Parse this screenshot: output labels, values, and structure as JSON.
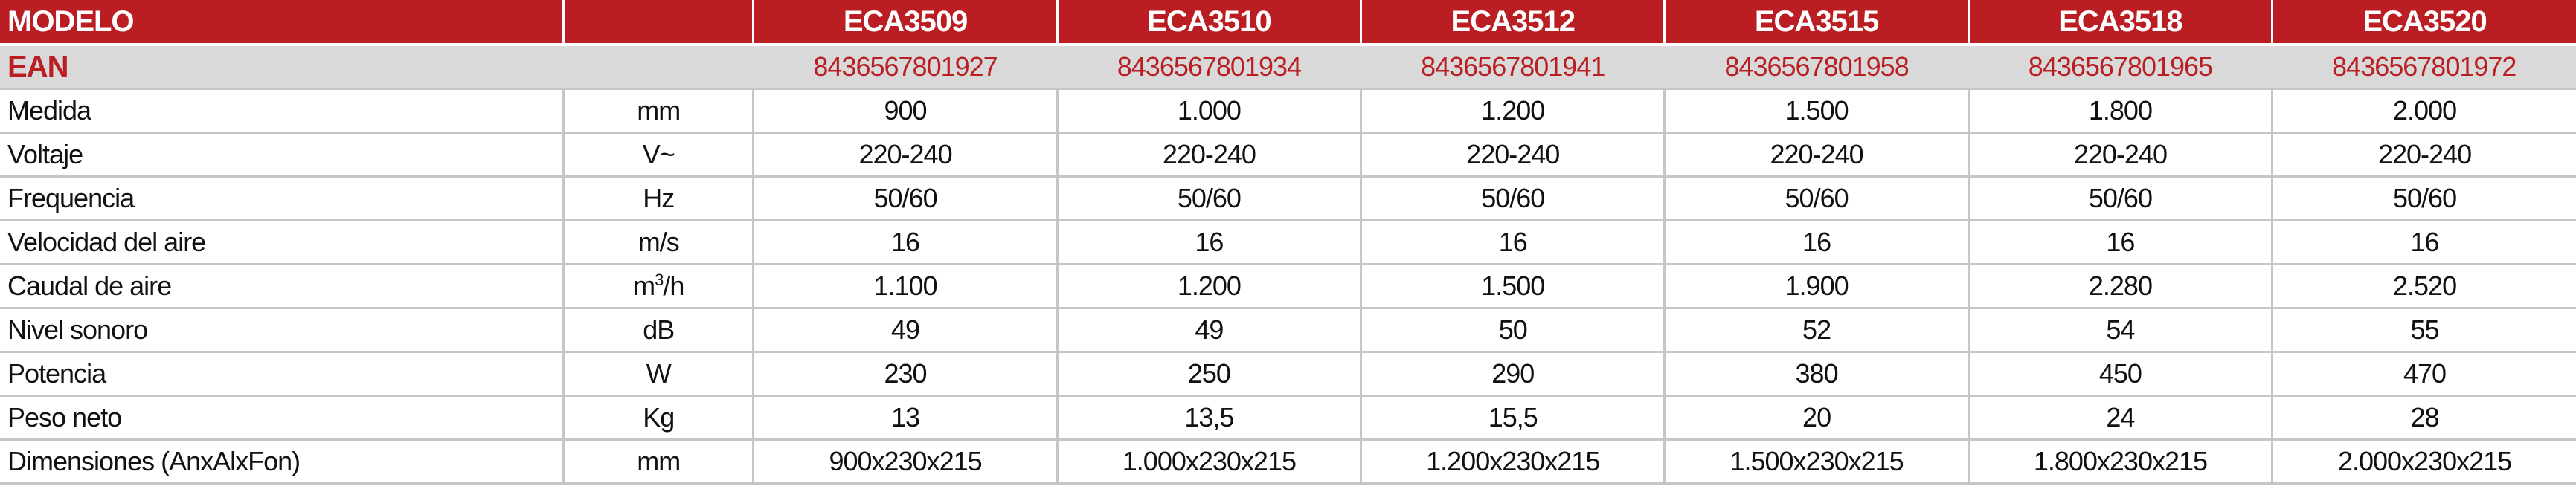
{
  "colors": {
    "header_bg": "#bb1e22",
    "ean_bg": "#d9d9d9",
    "ean_text": "#bb1e22",
    "border": "#c6c6c6"
  },
  "header": {
    "label": "MODELO",
    "unit": "",
    "models": [
      "ECA3509",
      "ECA3510",
      "ECA3512",
      "ECA3515",
      "ECA3518",
      "ECA3520"
    ]
  },
  "ean": {
    "label": "EAN",
    "unit": "",
    "values": [
      "8436567801927",
      "8436567801934",
      "8436567801941",
      "8436567801958",
      "8436567801965",
      "8436567801972"
    ]
  },
  "rows": [
    {
      "label": "Medida",
      "unit": "mm",
      "values": [
        "900",
        "1.000",
        "1.200",
        "1.500",
        "1.800",
        "2.000"
      ]
    },
    {
      "label": "Voltaje",
      "unit": "V~",
      "values": [
        "220-240",
        "220-240",
        "220-240",
        "220-240",
        "220-240",
        "220-240"
      ]
    },
    {
      "label": "Frequencia",
      "unit": "Hz",
      "values": [
        "50/60",
        "50/60",
        "50/60",
        "50/60",
        "50/60",
        "50/60"
      ]
    },
    {
      "label": "Velocidad del aire",
      "unit": "m/s",
      "values": [
        "16",
        "16",
        "16",
        "16",
        "16",
        "16"
      ]
    },
    {
      "label": "Caudal de aire",
      "unit": "m3/h",
      "values": [
        "1.100",
        "1.200",
        "1.500",
        "1.900",
        "2.280",
        "2.520"
      ]
    },
    {
      "label": "Nivel sonoro",
      "unit": "dB",
      "values": [
        "49",
        "49",
        "50",
        "52",
        "54",
        "55"
      ]
    },
    {
      "label": "Potencia",
      "unit": "W",
      "values": [
        "230",
        "250",
        "290",
        "380",
        "450",
        "470"
      ]
    },
    {
      "label": "Peso neto",
      "unit": "Kg",
      "values": [
        "13",
        "13,5",
        "15,5",
        "20",
        "24",
        "28"
      ]
    },
    {
      "label": "Dimensiones (AnxAlxFon)",
      "unit": "mm",
      "values": [
        "900x230x215",
        "1.000x230x215",
        "1.200x230x215",
        "1.500x230x215",
        "1.800x230x215",
        "2.000x230x215"
      ]
    }
  ]
}
